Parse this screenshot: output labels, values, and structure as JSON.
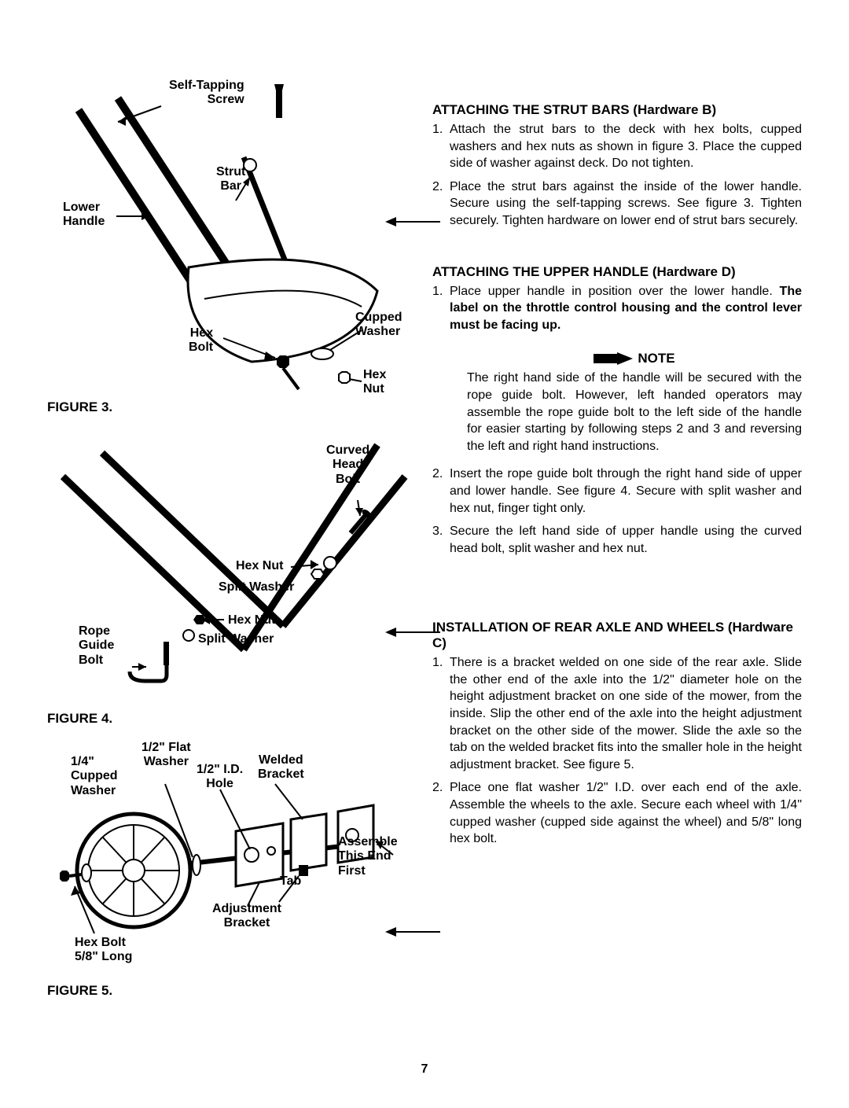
{
  "page_number": "7",
  "figures": {
    "fig3": {
      "caption": "FIGURE 3.",
      "labels": {
        "self_tapping_screw": "Self-Tapping\nScrew",
        "strut_bar": "Strut\nBar",
        "lower_handle": "Lower\nHandle",
        "hex_bolt": "Hex\nBolt",
        "cupped_washer": "Cupped\nWasher",
        "hex_nut": "Hex\nNut"
      }
    },
    "fig4": {
      "caption": "FIGURE 4.",
      "labels": {
        "curved_head_bolt": "Curved\nHead\nBolt",
        "hex_nut_top": "Hex Nut",
        "split_washer_top": "Split Washer",
        "rope_guide_bolt": "Rope\nGuide\nBolt",
        "hex_nut_bottom": "Hex Nut",
        "split_washer_bottom": "Split Washer"
      }
    },
    "fig5": {
      "caption": "FIGURE 5.",
      "labels": {
        "flat_washer": "1/2\" Flat\nWasher",
        "cupped_washer": "1/4\"\nCupped\nWasher",
        "id_hole": "1/2\" I.D.\nHole",
        "welded_bracket": "Welded\nBracket",
        "assemble_first": "Assemble\nThis End\nFirst",
        "tab": "Tab",
        "adjustment_bracket": "Adjustment\nBracket",
        "hex_bolt": "Hex Bolt\n5/8\" Long"
      }
    }
  },
  "sections": {
    "strut_bars": {
      "title": "ATTACHING THE STRUT BARS (Hardware B)",
      "steps": [
        {
          "num": "1.",
          "text": "Attach the strut bars to the deck with hex bolts, cupped washers and hex nuts as shown in figure 3. Place the cupped side of washer against deck. Do not tighten."
        },
        {
          "num": "2.",
          "text": "Place the strut bars against the inside of the lower handle. Secure using the self-tapping screws. See figure 3. Tighten securely. Tighten hardware on lower end of strut bars securely."
        }
      ]
    },
    "upper_handle": {
      "title": "ATTACHING THE UPPER HANDLE (Hardware D)",
      "steps_before_note": [
        {
          "num": "1.",
          "text_pre": "Place upper handle in position over the lower handle. ",
          "text_bold": "The label on the throttle control housing and the control lever must be facing up.",
          "text_post": ""
        }
      ],
      "note": {
        "label": "NOTE",
        "body": "The right hand side of the handle will be secured with the rope guide bolt. However, left handed operators may assemble the rope guide bolt to the left side of the handle for easier starting by following steps 2 and 3 and reversing the left and right hand instructions."
      },
      "steps_after_note": [
        {
          "num": "2.",
          "text": "Insert the rope guide bolt through the right hand side of upper and lower handle. See figure 4. Secure with split washer and hex nut, finger tight only."
        },
        {
          "num": "3.",
          "text": "Secure the left hand side of upper handle using the curved head bolt, split washer and hex nut."
        }
      ]
    },
    "rear_axle": {
      "title": "INSTALLATION OF REAR AXLE AND WHEELS (Hardware C)",
      "steps": [
        {
          "num": "1.",
          "text": "There is a bracket welded on one side of the rear axle. Slide the other end of the axle into the 1/2\" diameter hole on the height adjustment bracket on one side of the mower, from the inside. Slip the other end of the axle into the height adjustment bracket on the other side of the mower. Slide the axle so the tab on the welded bracket fits into the smaller hole in the height adjustment bracket. See figure 5."
        },
        {
          "num": "2.",
          "text": "Place one flat washer 1/2\" I.D. over each end of the axle. Assemble the wheels to the axle. Secure each wheel with 1/4\" cupped washer (cupped side against the wheel) and 5/8\" long hex bolt."
        }
      ]
    }
  },
  "style": {
    "font_body_pt": 16,
    "font_title_pt": 17,
    "color_text": "#000000",
    "color_bg": "#ffffff"
  }
}
